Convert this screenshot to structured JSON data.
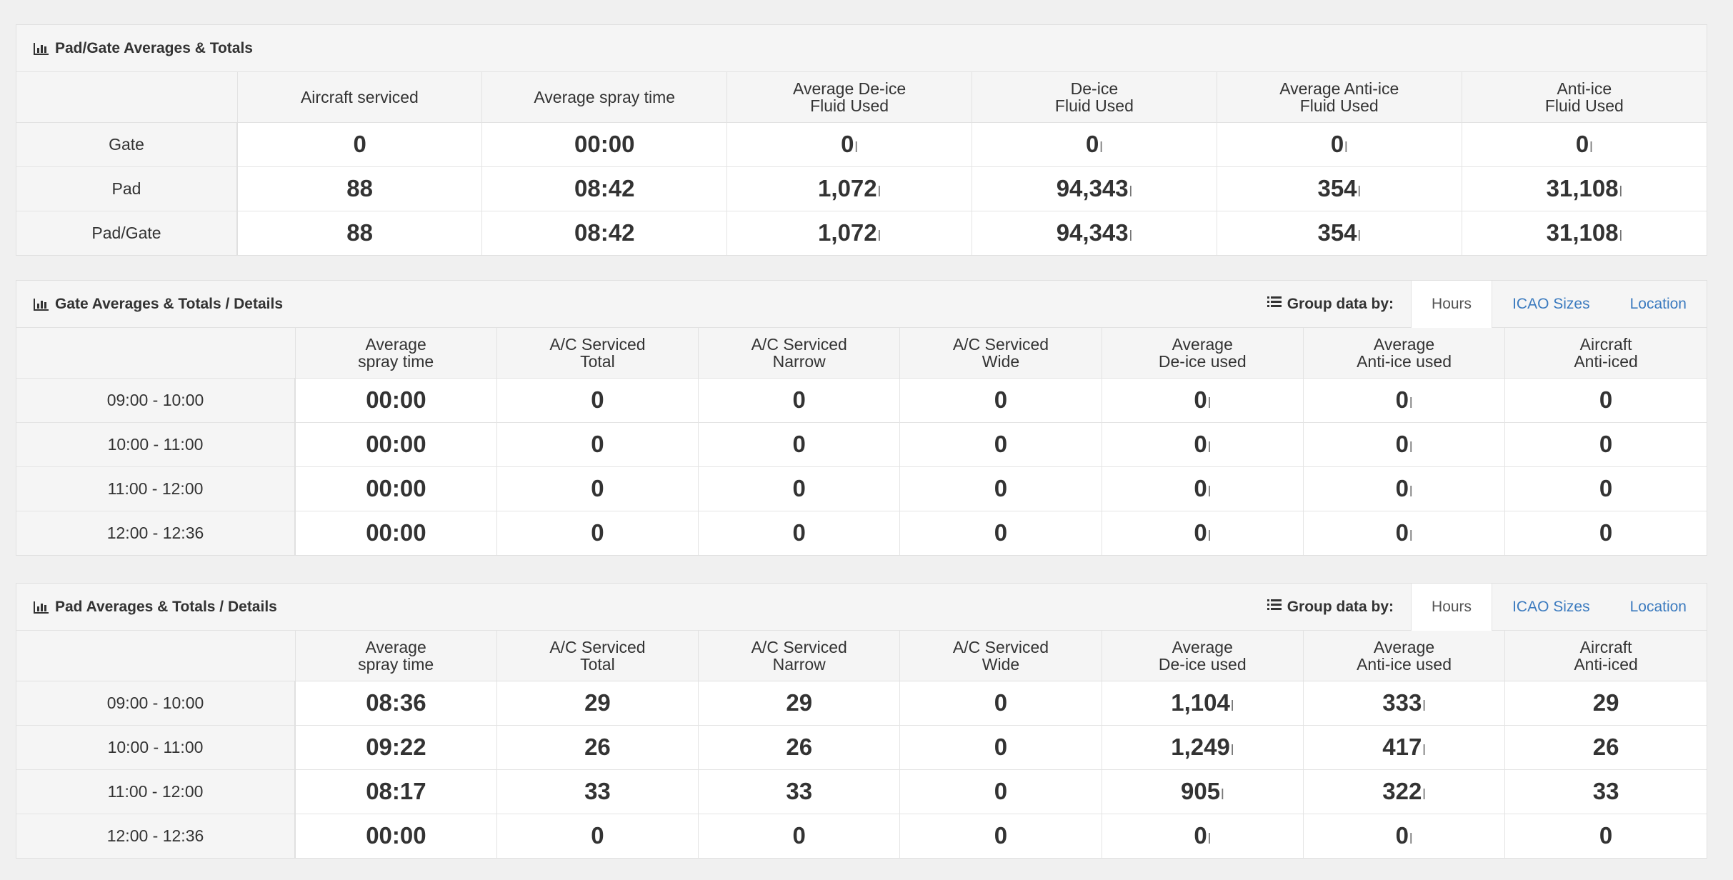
{
  "panel1": {
    "title": "Pad/Gate Averages & Totals",
    "columns": [
      "",
      "Aircraft serviced",
      "Average spray time",
      "Average De-ice\nFluid Used",
      "De-ice\nFluid Used",
      "Average Anti-ice\nFluid Used",
      "Anti-ice\nFluid Used"
    ],
    "rows": [
      {
        "label": "Gate",
        "cells": [
          [
            "0",
            ""
          ],
          [
            "00:00",
            ""
          ],
          [
            "0",
            "l"
          ],
          [
            "0",
            "l"
          ],
          [
            "0",
            "l"
          ],
          [
            "0",
            "l"
          ]
        ]
      },
      {
        "label": "Pad",
        "cells": [
          [
            "88",
            ""
          ],
          [
            "08:42",
            ""
          ],
          [
            "1,072",
            "l"
          ],
          [
            "94,343",
            "l"
          ],
          [
            "354",
            "l"
          ],
          [
            "31,108",
            "l"
          ]
        ]
      },
      {
        "label": "Pad/Gate",
        "cells": [
          [
            "88",
            ""
          ],
          [
            "08:42",
            ""
          ],
          [
            "1,072",
            "l"
          ],
          [
            "94,343",
            "l"
          ],
          [
            "354",
            "l"
          ],
          [
            "31,108",
            "l"
          ]
        ]
      }
    ]
  },
  "panel2": {
    "title": "Gate Averages & Totals / Details",
    "group_label": "Group data by:",
    "tabs": [
      {
        "label": "Hours",
        "active": true
      },
      {
        "label": "ICAO Sizes",
        "active": false
      },
      {
        "label": "Location",
        "active": false
      }
    ],
    "columns": [
      "",
      "Average\nspray time",
      "A/C Serviced\nTotal",
      "A/C Serviced\nNarrow",
      "A/C Serviced\nWide",
      "Average\nDe-ice used",
      "Average\nAnti-ice used",
      "Aircraft\nAnti-iced"
    ],
    "rows": [
      {
        "label": "09:00 - 10:00",
        "cells": [
          [
            "00:00",
            ""
          ],
          [
            "0",
            ""
          ],
          [
            "0",
            ""
          ],
          [
            "0",
            ""
          ],
          [
            "0",
            "l"
          ],
          [
            "0",
            "l"
          ],
          [
            "0",
            ""
          ]
        ]
      },
      {
        "label": "10:00 - 11:00",
        "cells": [
          [
            "00:00",
            ""
          ],
          [
            "0",
            ""
          ],
          [
            "0",
            ""
          ],
          [
            "0",
            ""
          ],
          [
            "0",
            "l"
          ],
          [
            "0",
            "l"
          ],
          [
            "0",
            ""
          ]
        ]
      },
      {
        "label": "11:00 - 12:00",
        "cells": [
          [
            "00:00",
            ""
          ],
          [
            "0",
            ""
          ],
          [
            "0",
            ""
          ],
          [
            "0",
            ""
          ],
          [
            "0",
            "l"
          ],
          [
            "0",
            "l"
          ],
          [
            "0",
            ""
          ]
        ]
      },
      {
        "label": "12:00 - 12:36",
        "cells": [
          [
            "00:00",
            ""
          ],
          [
            "0",
            ""
          ],
          [
            "0",
            ""
          ],
          [
            "0",
            ""
          ],
          [
            "0",
            "l"
          ],
          [
            "0",
            "l"
          ],
          [
            "0",
            ""
          ]
        ]
      }
    ]
  },
  "panel3": {
    "title": "Pad Averages & Totals / Details",
    "group_label": "Group data by:",
    "tabs": [
      {
        "label": "Hours",
        "active": true
      },
      {
        "label": "ICAO Sizes",
        "active": false
      },
      {
        "label": "Location",
        "active": false
      }
    ],
    "columns": [
      "",
      "Average\nspray time",
      "A/C Serviced\nTotal",
      "A/C Serviced\nNarrow",
      "A/C Serviced\nWide",
      "Average\nDe-ice used",
      "Average\nAnti-ice used",
      "Aircraft\nAnti-iced"
    ],
    "rows": [
      {
        "label": "09:00 - 10:00",
        "cells": [
          [
            "08:36",
            ""
          ],
          [
            "29",
            ""
          ],
          [
            "29",
            ""
          ],
          [
            "0",
            ""
          ],
          [
            "1,104",
            "l"
          ],
          [
            "333",
            "l"
          ],
          [
            "29",
            ""
          ]
        ]
      },
      {
        "label": "10:00 - 11:00",
        "cells": [
          [
            "09:22",
            ""
          ],
          [
            "26",
            ""
          ],
          [
            "26",
            ""
          ],
          [
            "0",
            ""
          ],
          [
            "1,249",
            "l"
          ],
          [
            "417",
            "l"
          ],
          [
            "26",
            ""
          ]
        ]
      },
      {
        "label": "11:00 - 12:00",
        "cells": [
          [
            "08:17",
            ""
          ],
          [
            "33",
            ""
          ],
          [
            "33",
            ""
          ],
          [
            "0",
            ""
          ],
          [
            "905",
            "l"
          ],
          [
            "322",
            "l"
          ],
          [
            "33",
            ""
          ]
        ]
      },
      {
        "label": "12:00 - 12:36",
        "cells": [
          [
            "00:00",
            ""
          ],
          [
            "0",
            ""
          ],
          [
            "0",
            ""
          ],
          [
            "0",
            ""
          ],
          [
            "0",
            "l"
          ],
          [
            "0",
            "l"
          ],
          [
            "0",
            ""
          ]
        ]
      }
    ]
  }
}
